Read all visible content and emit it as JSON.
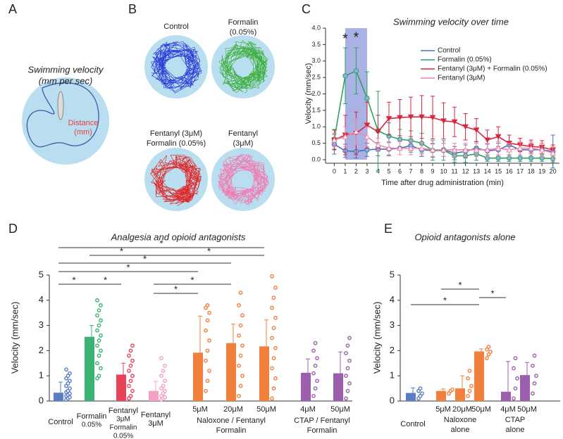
{
  "panel_labels": [
    "A",
    "B",
    "C",
    "D",
    "E"
  ],
  "panel_a": {
    "title": "Swimming velocity",
    "subtitle": "(mm per sec)",
    "label": "Distance",
    "unit": "(mm)"
  },
  "panel_b": {
    "labels": [
      [
        "Control"
      ],
      [
        "Formalin",
        "(0.05%)"
      ],
      [
        "Fentanyl (3μM)",
        "Formalin (0.05%)"
      ],
      [
        "Fentanyl",
        "(3μM)"
      ]
    ]
  },
  "chart_data": [
    {
      "type": "line",
      "title": "Swimming velocity over time",
      "xlabel": "Time after drug administration (min)",
      "ylabel": "Velocity (mm/sec)",
      "x": [
        0,
        1,
        2,
        3,
        4,
        5,
        6,
        7,
        8,
        9,
        10,
        11,
        12,
        13,
        14,
        15,
        16,
        17,
        18,
        19,
        20
      ],
      "xlim": [
        -0.8,
        20.6
      ],
      "xticks": [
        0,
        1,
        2,
        3,
        4,
        5,
        6,
        7,
        8,
        9,
        10,
        11,
        12,
        13,
        14,
        15,
        16,
        17,
        18,
        19,
        20
      ],
      "ylim": [
        0,
        4
      ],
      "yticks": [
        {
          "value": 0,
          "label": "0.0"
        },
        0.5,
        {
          "value": 1,
          "label": "1.0"
        },
        1.5,
        {
          "value": 2,
          "label": "2.0"
        },
        2.5,
        {
          "value": 3,
          "label": "3.0"
        },
        3.5,
        {
          "value": 4,
          "label": "4.0"
        }
      ],
      "highlight_x": [
        1,
        3
      ],
      "annotations": [
        {
          "text": "*",
          "x": 1,
          "y": 3.65
        },
        {
          "text": "*",
          "x": 2,
          "y": 3.7
        }
      ],
      "series": [
        {
          "name": "Control",
          "color": "#4a6fb5",
          "marker": "circle",
          "values": [
            0.47,
            0.27,
            0.25,
            0.3,
            0.32,
            0.32,
            0.35,
            0.43,
            0.3,
            0.28,
            0.3,
            0.2,
            0.25,
            0.35,
            0.27,
            0.3,
            0.45,
            0.3,
            0.3,
            0.3,
            0.25
          ],
          "errors": [
            0.3,
            0.2,
            0.2,
            0.2,
            0.2,
            0.2,
            0.2,
            0.2,
            0.2,
            0.2,
            0.2,
            0.2,
            0.2,
            0.2,
            0.2,
            0.2,
            0.3,
            0.2,
            0.2,
            0.2,
            0.5
          ]
        },
        {
          "name": "Formalin (0.05%)",
          "color": "#2ca25f",
          "marker": "circle",
          "values": [
            0.62,
            2.55,
            2.7,
            1.87,
            0.88,
            0.72,
            0.62,
            0.58,
            0.5,
            0.28,
            0.28,
            0.12,
            0.12,
            0.18,
            0.05,
            0.05,
            0.05,
            0.05,
            0.05,
            0.05,
            0.03
          ],
          "errors": [
            0.3,
            0.85,
            0.7,
            0.8,
            1.2,
            0.4,
            0.3,
            0.3,
            0.3,
            0.3,
            0.3,
            0.2,
            0.2,
            0.2,
            0.1,
            0.1,
            0.1,
            0.1,
            0.1,
            0.1,
            0.1
          ]
        },
        {
          "name": "Fentanyl (3μM) + Formalin (0.05%)",
          "color": "#d7263d",
          "marker": "triangle-down",
          "values": [
            0.6,
            0.75,
            0.8,
            1.05,
            0.85,
            1.25,
            1.28,
            1.3,
            1.3,
            1.28,
            1.18,
            1.15,
            1.0,
            0.9,
            0.6,
            0.7,
            0.5,
            0.45,
            0.4,
            0.38,
            0.3
          ],
          "errors": [
            0.3,
            0.6,
            0.65,
            0.7,
            0.5,
            0.5,
            0.55,
            0.6,
            0.65,
            0.65,
            0.55,
            0.45,
            0.4,
            0.35,
            0.3,
            0.3,
            0.25,
            0.2,
            0.2,
            0.2,
            0.15
          ]
        },
        {
          "name": "Fentanyl (3μM)",
          "color": "#ee84aa",
          "marker": "triangle-up",
          "values": [
            0.6,
            0.7,
            0.85,
            0.7,
            0.45,
            0.35,
            0.35,
            0.35,
            0.35,
            0.3,
            0.3,
            0.3,
            0.3,
            0.3,
            0.3,
            0.35,
            0.3,
            0.35,
            0.35,
            0.3,
            0.2
          ],
          "errors": [
            0.2,
            0.3,
            0.4,
            0.3,
            0.2,
            0.2,
            0.2,
            0.2,
            0.2,
            0.2,
            0.2,
            0.2,
            0.2,
            0.2,
            0.2,
            0.2,
            0.2,
            0.2,
            0.2,
            0.2,
            0.2
          ]
        }
      ]
    },
    {
      "type": "bar",
      "title": "Analgesia and opioid antagonists",
      "ylabel": "Velocity (mm/sec)",
      "categories": [
        [
          "Control"
        ],
        [
          "Formalin",
          "0.05%"
        ],
        [
          "Fentanyl",
          "3μM",
          "Formalin",
          "0.05%"
        ],
        [
          "Fentanyl",
          "3μM"
        ],
        [
          "5μM"
        ],
        [
          "20μM"
        ],
        [
          "50μM"
        ],
        [
          "4μM"
        ],
        [
          "50μM"
        ]
      ],
      "groups": [
        {
          "lines": [
            "Naloxone / Fentanyl",
            "Formalin"
          ]
        },
        {
          "lines": [
            "CTAP / Fentanyl",
            "Formalin"
          ]
        }
      ],
      "values": [
        0.33,
        2.55,
        1.05,
        0.4,
        1.92,
        2.3,
        2.17,
        1.12,
        1.1
      ],
      "errors": [
        0.42,
        0.45,
        0.45,
        0.38,
        1.45,
        0.75,
        1.05,
        0.55,
        0.85
      ],
      "colors": [
        "#5a7dc5",
        "#3bb273",
        "#e9435a",
        "#f4a0c4",
        "#f0803c",
        "#f0803c",
        "#f0803c",
        "#9d5fab",
        "#9d5fab"
      ],
      "points": [
        [
          0.05,
          0.1,
          0.15,
          0.2,
          0.25,
          0.3,
          0.35,
          0.4,
          0.5,
          0.6,
          0.7,
          0.8,
          0.9,
          1.0,
          1.1,
          1.25
        ],
        [
          0.9,
          1.0,
          1.3,
          1.5,
          1.8,
          2.0,
          2.2,
          2.4,
          2.6,
          2.8,
          3.0,
          3.2,
          3.4,
          3.6,
          3.8,
          4.0
        ],
        [
          0.1,
          0.2,
          0.4,
          0.6,
          0.8,
          1.0,
          1.2,
          1.4,
          1.6,
          1.8,
          2.0,
          2.2
        ],
        [
          0.05,
          0.1,
          0.15,
          0.2,
          0.3,
          0.4,
          0.5,
          0.6,
          0.8,
          1.0,
          1.2,
          1.4,
          1.7
        ],
        [
          0.4,
          0.8,
          1.2,
          1.6,
          2.0,
          2.4,
          2.8,
          3.2,
          3.5,
          3.7,
          3.8
        ],
        [
          0.2,
          0.6,
          1.0,
          1.4,
          1.8,
          2.2,
          2.6,
          3.0,
          3.4,
          3.8,
          4.3
        ],
        [
          0.1,
          0.5,
          0.9,
          1.3,
          1.7,
          2.1,
          2.5,
          2.9,
          3.3,
          3.7,
          4.1,
          4.5,
          4.95
        ],
        [
          0.2,
          0.5,
          0.8,
          1.1,
          1.4,
          1.7,
          2.0,
          2.3
        ],
        [
          0.1,
          0.4,
          0.7,
          1.0,
          1.3,
          1.6,
          1.9,
          2.2,
          2.5
        ]
      ],
      "ylim": [
        0,
        5
      ],
      "yticks": [
        0,
        1,
        2,
        3,
        4,
        5
      ],
      "significance": [
        {
          "pair": [
            0,
            6
          ],
          "label": "*"
        },
        {
          "pair": [
            1,
            3
          ],
          "label": "*"
        },
        {
          "pair": [
            3,
            6
          ],
          "label": "*"
        },
        {
          "pair": [
            0,
            5
          ],
          "label": "*"
        },
        {
          "pair": [
            0,
            4
          ],
          "label": "*"
        },
        {
          "pair": [
            0,
            1
          ],
          "label": "*"
        },
        {
          "pair": [
            1,
            2
          ],
          "label": "*"
        },
        {
          "pair": [
            3,
            5
          ],
          "label": "*"
        },
        {
          "pair": [
            3,
            4
          ],
          "label": "*"
        }
      ]
    },
    {
      "type": "bar",
      "title": "Opioid antagonists alone",
      "ylabel": "Velocity (mm/sec)",
      "categories": [
        [
          "Control"
        ],
        [
          "5μM"
        ],
        [
          "20μM"
        ],
        [
          "50μM"
        ],
        [
          "4μM"
        ],
        [
          "50μM"
        ]
      ],
      "groups": [
        {
          "lines": [
            "Naloxone",
            "alone"
          ]
        },
        {
          "lines": [
            "CTAP",
            "alone"
          ]
        }
      ],
      "values": [
        0.32,
        0.4,
        0.5,
        1.97,
        0.37,
        1.03
      ],
      "errors": [
        0.2,
        0.08,
        0.5,
        0.1,
        1.2,
        0.5
      ],
      "colors": [
        "#5a7dc5",
        "#f0803c",
        "#f0803c",
        "#f0803c",
        "#9d5fab",
        "#9d5fab"
      ],
      "points": [
        [
          0.1,
          0.2,
          0.3,
          0.4,
          0.5
        ],
        [
          0.3,
          0.4,
          0.45
        ],
        [
          0.2,
          0.4,
          0.6,
          0.9,
          1.2
        ],
        [
          1.7,
          1.85,
          1.95,
          2.05,
          2.15
        ],
        [
          0.1,
          0.5,
          0.9,
          1.3,
          1.7
        ],
        [
          0.3,
          0.7,
          1.0,
          1.4,
          1.8
        ]
      ],
      "ylim": [
        0,
        5
      ],
      "yticks": [
        0,
        1,
        2,
        3,
        4,
        5
      ],
      "significance": [
        {
          "pair": [
            0,
            3
          ],
          "label": "*"
        },
        {
          "pair": [
            1,
            3
          ],
          "label": "*"
        },
        {
          "pair": [
            3,
            4
          ],
          "label": "*"
        }
      ]
    }
  ]
}
